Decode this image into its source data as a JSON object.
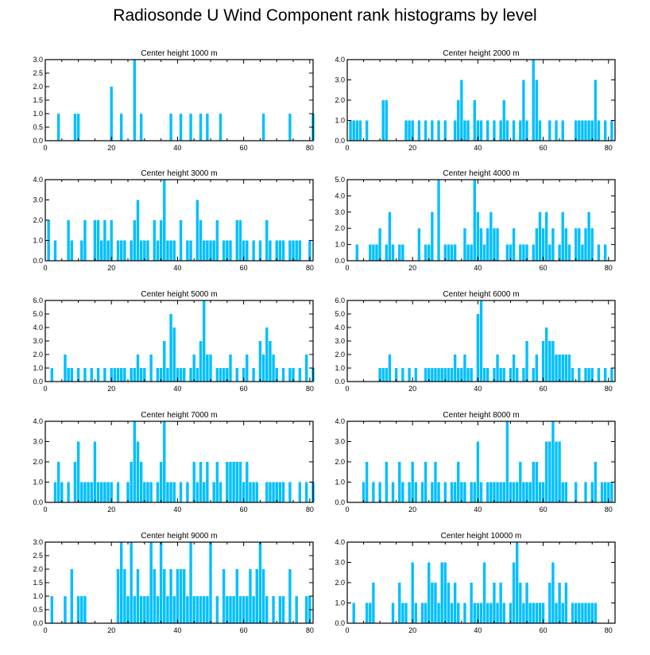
{
  "title": "Radiosonde U Wind Component rank histograms by level",
  "bar_color": "#00bfff",
  "chart_data": [
    {
      "type": "bar",
      "title": "Center height 1000 m",
      "xlabel": "",
      "ylabel": "",
      "xlim": [
        0,
        81
      ],
      "ylim": [
        0,
        3.0
      ],
      "xticks": [
        0,
        20,
        40,
        60,
        80
      ],
      "yticks": [
        "0.0",
        "0.5",
        "1.0",
        "1.5",
        "2.0",
        "2.5",
        "3.0"
      ],
      "ranks": [
        4,
        9,
        10,
        20,
        23,
        27,
        29,
        38,
        41,
        44,
        47,
        49,
        53,
        66,
        74,
        81
      ],
      "values": [
        1,
        1,
        1,
        2,
        1,
        3,
        1,
        1,
        1,
        1,
        1,
        1,
        1,
        1,
        1,
        1
      ]
    },
    {
      "type": "bar",
      "title": "Center height 2000 m",
      "xlabel": "",
      "ylabel": "",
      "xlim": [
        0,
        82
      ],
      "ylim": [
        0,
        4.0
      ],
      "xticks": [
        0,
        20,
        40,
        60,
        80
      ],
      "yticks": [
        "0.0",
        "1.0",
        "2.0",
        "3.0",
        "4.0"
      ],
      "ranks": [
        1,
        2,
        3,
        4,
        6,
        11,
        12,
        18,
        19,
        20,
        22,
        24,
        26,
        28,
        30,
        33,
        34,
        35,
        36,
        37,
        39,
        40,
        41,
        43,
        45,
        47,
        48,
        49,
        51,
        53,
        54,
        55,
        57,
        58,
        59,
        62,
        64,
        66,
        70,
        71,
        72,
        73,
        74,
        75,
        76,
        77,
        79,
        81
      ],
      "values": [
        1,
        1,
        1,
        1,
        1,
        2,
        2,
        1,
        1,
        1,
        1,
        1,
        1,
        1,
        1,
        1,
        2,
        3,
        1,
        1,
        2,
        1,
        1,
        1,
        1,
        1,
        2,
        1,
        1,
        1,
        3,
        1,
        4,
        3,
        1,
        1,
        1,
        1,
        1,
        1,
        1,
        1,
        1,
        1,
        3,
        1,
        1,
        1
      ]
    },
    {
      "type": "bar",
      "title": "Center height 3000 m",
      "xlabel": "",
      "ylabel": "",
      "xlim": [
        0,
        81
      ],
      "ylim": [
        0,
        4.0
      ],
      "xticks": [
        0,
        20,
        40,
        60,
        80
      ],
      "yticks": [
        "0.0",
        "1.0",
        "2.0",
        "3.0",
        "4.0"
      ],
      "ranks": [
        1,
        3,
        7,
        8,
        11,
        12,
        15,
        16,
        17,
        18,
        19,
        20,
        22,
        23,
        24,
        26,
        27,
        28,
        29,
        30,
        31,
        33,
        34,
        35,
        36,
        37,
        38,
        39,
        41,
        43,
        44,
        46,
        47,
        48,
        49,
        50,
        51,
        52,
        54,
        55,
        56,
        58,
        59,
        60,
        61,
        63,
        65,
        67,
        68,
        70,
        71,
        72,
        74,
        75,
        76,
        77,
        80
      ],
      "values": [
        2,
        1,
        2,
        1,
        1,
        2,
        2,
        2,
        1,
        2,
        1,
        2,
        1,
        1,
        1,
        1,
        2,
        3,
        1,
        1,
        1,
        2,
        1,
        2,
        4,
        1,
        1,
        1,
        2,
        1,
        1,
        3,
        2,
        1,
        1,
        1,
        1,
        2,
        1,
        1,
        1,
        2,
        2,
        1,
        1,
        1,
        1,
        2,
        1,
        1,
        1,
        1,
        1,
        1,
        1,
        1,
        1
      ]
    },
    {
      "type": "bar",
      "title": "Center height 4000 m",
      "xlabel": "",
      "ylabel": "",
      "xlim": [
        0,
        82
      ],
      "ylim": [
        0,
        5.0
      ],
      "xticks": [
        0,
        20,
        40,
        60,
        80
      ],
      "yticks": [
        "0.0",
        "1.0",
        "2.0",
        "3.0",
        "4.0",
        "5.0"
      ],
      "ranks": [
        3,
        7,
        8,
        9,
        10,
        12,
        13,
        14,
        16,
        17,
        22,
        24,
        25,
        26,
        28,
        30,
        31,
        32,
        33,
        36,
        37,
        38,
        39,
        40,
        41,
        42,
        43,
        44,
        45,
        46,
        49,
        50,
        51,
        53,
        54,
        55,
        57,
        58,
        59,
        60,
        61,
        62,
        63,
        65,
        66,
        67,
        68,
        70,
        71,
        72,
        73,
        74,
        75,
        77,
        79
      ],
      "values": [
        1,
        1,
        1,
        1,
        2,
        1,
        3,
        1,
        1,
        1,
        2,
        1,
        1,
        3,
        5,
        1,
        1,
        1,
        1,
        2,
        1,
        1,
        5,
        3,
        2,
        1,
        2,
        3,
        2,
        2,
        1,
        1,
        2,
        1,
        1,
        1,
        1,
        2,
        3,
        2,
        3,
        1,
        2,
        1,
        3,
        2,
        1,
        2,
        2,
        1,
        2,
        3,
        2,
        1,
        1
      ]
    },
    {
      "type": "bar",
      "title": "Center height 5000 m",
      "xlabel": "",
      "ylabel": "",
      "xlim": [
        0,
        81
      ],
      "ylim": [
        0,
        6.0
      ],
      "xticks": [
        0,
        20,
        40,
        60,
        80
      ],
      "yticks": [
        "0.0",
        "1.0",
        "2.0",
        "3.0",
        "4.0",
        "5.0",
        "6.0"
      ],
      "ranks": [
        2,
        6,
        7,
        8,
        10,
        12,
        14,
        16,
        18,
        20,
        21,
        22,
        23,
        24,
        26,
        27,
        28,
        29,
        30,
        32,
        34,
        35,
        36,
        37,
        38,
        39,
        40,
        41,
        42,
        44,
        45,
        46,
        47,
        48,
        49,
        50,
        52,
        53,
        54,
        55,
        56,
        58,
        60,
        61,
        63,
        65,
        66,
        67,
        68,
        69,
        70,
        72,
        74,
        75,
        77,
        79,
        81
      ],
      "values": [
        1,
        2,
        1,
        1,
        1,
        1,
        1,
        1,
        1,
        1,
        1,
        1,
        1,
        1,
        1,
        1,
        2,
        1,
        1,
        2,
        1,
        1,
        3,
        1,
        5,
        4,
        1,
        1,
        1,
        1,
        2,
        1,
        3,
        6,
        2,
        2,
        1,
        1,
        1,
        1,
        2,
        1,
        1,
        2,
        1,
        3,
        2,
        4,
        3,
        2,
        1,
        1,
        1,
        1,
        1,
        2,
        1
      ]
    },
    {
      "type": "bar",
      "title": "Center height 6000 m",
      "xlabel": "",
      "ylabel": "",
      "xlim": [
        0,
        82
      ],
      "ylim": [
        0,
        6.0
      ],
      "xticks": [
        0,
        20,
        40,
        60,
        80
      ],
      "yticks": [
        "0.0",
        "1.0",
        "2.0",
        "3.0",
        "4.0",
        "5.0",
        "6.0"
      ],
      "ranks": [
        10,
        11,
        12,
        13,
        15,
        17,
        19,
        21,
        24,
        25,
        26,
        27,
        28,
        29,
        30,
        31,
        32,
        33,
        34,
        35,
        36,
        37,
        38,
        40,
        41,
        42,
        43,
        45,
        46,
        47,
        48,
        50,
        51,
        52,
        54,
        55,
        57,
        58,
        60,
        61,
        62,
        63,
        64,
        65,
        66,
        67,
        68,
        69,
        71,
        73,
        74,
        75,
        77,
        79,
        81
      ],
      "values": [
        1,
        1,
        1,
        2,
        1,
        1,
        1,
        1,
        1,
        1,
        1,
        1,
        1,
        1,
        1,
        1,
        1,
        2,
        1,
        1,
        2,
        1,
        1,
        5,
        6,
        1,
        1,
        1,
        2,
        1,
        1,
        1,
        2,
        1,
        1,
        3,
        1,
        2,
        3,
        4,
        3,
        3,
        2,
        2,
        2,
        2,
        2,
        1,
        1,
        1,
        1,
        1,
        1,
        1,
        1
      ]
    },
    {
      "type": "bar",
      "title": "Center height 7000 m",
      "xlabel": "",
      "ylabel": "",
      "xlim": [
        0,
        81
      ],
      "ylim": [
        0,
        4.0
      ],
      "xticks": [
        0,
        20,
        40,
        60,
        80
      ],
      "yticks": [
        "0.0",
        "1.0",
        "2.0",
        "3.0",
        "4.0"
      ],
      "ranks": [
        3,
        4,
        5,
        7,
        9,
        10,
        11,
        12,
        13,
        14,
        15,
        16,
        17,
        18,
        19,
        20,
        22,
        25,
        26,
        27,
        28,
        29,
        30,
        31,
        32,
        34,
        35,
        36,
        37,
        38,
        39,
        41,
        43,
        45,
        46,
        47,
        48,
        49,
        51,
        52,
        53,
        55,
        56,
        57,
        58,
        59,
        60,
        61,
        62,
        63,
        64,
        67,
        68,
        69,
        70,
        71,
        72,
        74,
        77,
        79,
        81
      ],
      "values": [
        1,
        2,
        1,
        1,
        2,
        3,
        1,
        1,
        1,
        1,
        3,
        1,
        1,
        1,
        1,
        1,
        1,
        1,
        2,
        4,
        3,
        2,
        1,
        1,
        1,
        1,
        2,
        4,
        1,
        1,
        1,
        1,
        1,
        2,
        1,
        2,
        1,
        2,
        1,
        2,
        1,
        2,
        2,
        2,
        2,
        2,
        1,
        2,
        1,
        1,
        1,
        1,
        1,
        1,
        1,
        1,
        1,
        1,
        1,
        1,
        1
      ]
    },
    {
      "type": "bar",
      "title": "Center height 8000 m",
      "xlabel": "",
      "ylabel": "",
      "xlim": [
        0,
        82
      ],
      "ylim": [
        0,
        4.0
      ],
      "xticks": [
        0,
        20,
        40,
        60,
        80
      ],
      "yticks": [
        "0.0",
        "1.0",
        "2.0",
        "3.0",
        "4.0"
      ],
      "ranks": [
        5,
        6,
        8,
        10,
        12,
        14,
        16,
        17,
        19,
        20,
        21,
        23,
        24,
        26,
        27,
        28,
        30,
        32,
        33,
        34,
        35,
        36,
        38,
        39,
        40,
        41,
        43,
        44,
        45,
        46,
        47,
        48,
        49,
        50,
        51,
        52,
        53,
        54,
        55,
        56,
        57,
        58,
        59,
        60,
        61,
        62,
        63,
        64,
        65,
        66,
        67,
        70,
        73,
        75,
        76,
        78,
        79,
        80,
        81
      ],
      "values": [
        1,
        2,
        1,
        1,
        2,
        1,
        2,
        1,
        1,
        2,
        1,
        1,
        2,
        1,
        2,
        1,
        1,
        1,
        1,
        2,
        1,
        1,
        1,
        1,
        3,
        1,
        1,
        1,
        1,
        1,
        1,
        1,
        4,
        1,
        1,
        1,
        2,
        1,
        1,
        1,
        2,
        2,
        1,
        1,
        3,
        3,
        4,
        3,
        3,
        1,
        1,
        1,
        1,
        1,
        2,
        1,
        1,
        1,
        1
      ]
    },
    {
      "type": "bar",
      "title": "Center height 9000 m",
      "xlabel": "",
      "ylabel": "",
      "xlim": [
        0,
        81
      ],
      "ylim": [
        0,
        3.0
      ],
      "xticks": [
        0,
        20,
        40,
        60,
        80
      ],
      "yticks": [
        "0.0",
        "0.5",
        "1.0",
        "1.5",
        "2.0",
        "2.5",
        "3.0"
      ],
      "ranks": [
        2,
        6,
        8,
        10,
        11,
        12,
        22,
        23,
        24,
        25,
        26,
        27,
        28,
        29,
        30,
        31,
        32,
        33,
        34,
        35,
        36,
        37,
        38,
        39,
        40,
        41,
        42,
        43,
        44,
        45,
        46,
        47,
        48,
        49,
        50,
        52,
        54,
        55,
        56,
        57,
        58,
        59,
        60,
        61,
        62,
        63,
        64,
        65,
        66,
        67,
        69,
        71,
        72,
        74,
        76,
        79,
        80
      ],
      "values": [
        1,
        1,
        2,
        1,
        1,
        1,
        2,
        3,
        2,
        1,
        3,
        1,
        2,
        1,
        1,
        1,
        3,
        2,
        1,
        3,
        2,
        1,
        2,
        1,
        2,
        2,
        2,
        1,
        3,
        1,
        1,
        1,
        1,
        1,
        3,
        1,
        2,
        1,
        1,
        1,
        2,
        1,
        1,
        1,
        2,
        1,
        2,
        3,
        2,
        1,
        1,
        1,
        1,
        2,
        1,
        1,
        1
      ]
    },
    {
      "type": "bar",
      "title": "Center height 10000 m",
      "xlabel": "",
      "ylabel": "",
      "xlim": [
        0,
        82
      ],
      "ylim": [
        0,
        4.0
      ],
      "xticks": [
        0,
        20,
        40,
        60,
        80
      ],
      "yticks": [
        "0.0",
        "1.0",
        "2.0",
        "3.0",
        "4.0"
      ],
      "ranks": [
        2,
        6,
        7,
        8,
        14,
        16,
        17,
        18,
        20,
        21,
        23,
        24,
        25,
        26,
        27,
        28,
        29,
        30,
        31,
        32,
        33,
        34,
        36,
        38,
        39,
        40,
        41,
        42,
        43,
        44,
        45,
        46,
        47,
        48,
        50,
        51,
        52,
        53,
        54,
        55,
        56,
        57,
        58,
        59,
        60,
        62,
        63,
        64,
        65,
        66,
        67,
        69,
        70,
        71,
        72,
        73,
        74,
        75,
        76
      ],
      "values": [
        1,
        1,
        1,
        2,
        1,
        2,
        1,
        1,
        3,
        1,
        1,
        1,
        3,
        2,
        2,
        1,
        3,
        3,
        2,
        1,
        2,
        1,
        1,
        2,
        1,
        1,
        1,
        3,
        1,
        1,
        2,
        1,
        2,
        1,
        1,
        3,
        4,
        2,
        1,
        2,
        1,
        1,
        1,
        1,
        1,
        2,
        3,
        1,
        2,
        1,
        2,
        1,
        1,
        1,
        1,
        1,
        1,
        1,
        1
      ]
    }
  ]
}
